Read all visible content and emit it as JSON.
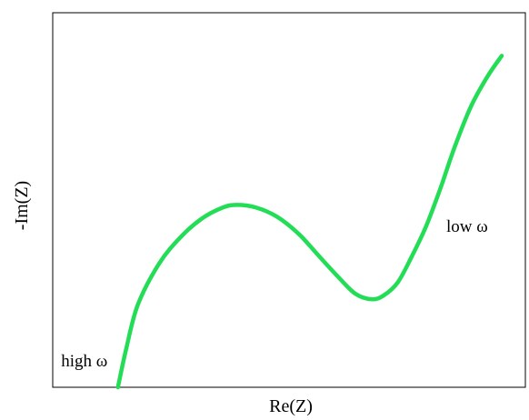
{
  "chart_data": {
    "type": "line",
    "title": "",
    "xlabel": "Re(Z)",
    "ylabel": "-Im(Z)",
    "xlim": [
      0,
      1
    ],
    "ylim": [
      0,
      1
    ],
    "grid": false,
    "legend": "none",
    "series": [
      {
        "color": "#22dd55",
        "x": [
          0.138,
          0.155,
          0.18,
          0.225,
          0.27,
          0.315,
          0.36,
          0.39,
          0.43,
          0.475,
          0.52,
          0.56,
          0.6,
          0.64,
          0.675,
          0.7,
          0.73,
          0.76,
          0.79,
          0.82,
          0.85,
          0.885,
          0.92,
          0.95
        ],
        "y": [
          0.0,
          0.1,
          0.22,
          0.33,
          0.4,
          0.45,
          0.48,
          0.487,
          0.48,
          0.455,
          0.41,
          0.355,
          0.3,
          0.25,
          0.235,
          0.245,
          0.28,
          0.35,
          0.43,
          0.53,
          0.64,
          0.75,
          0.83,
          0.885
        ]
      }
    ],
    "annotations": [
      {
        "text": "high ω",
        "x": 0.01,
        "y": 0.07
      },
      {
        "text": "low ω",
        "x": 0.825,
        "y": 0.43
      }
    ]
  }
}
